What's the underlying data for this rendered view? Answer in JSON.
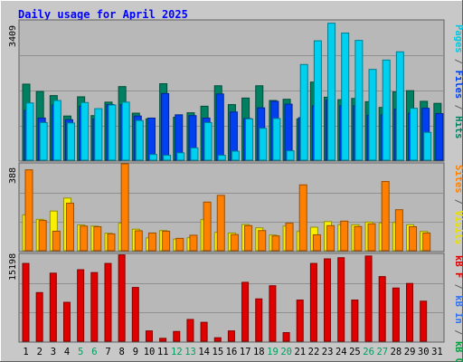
{
  "title": "Daily usage for April 2025",
  "right_labels": {
    "top": [
      {
        "text": "Pages",
        "color": "#00c8e0"
      },
      {
        "text": " / ",
        "color": "#606060"
      },
      {
        "text": "Files",
        "color": "#0040f0"
      },
      {
        "text": " / ",
        "color": "#606060"
      },
      {
        "text": "Hits",
        "color": "#008060"
      }
    ],
    "middle": [
      {
        "text": "Sites",
        "color": "#ff8000"
      },
      {
        "text": " / ",
        "color": "#606060"
      },
      {
        "text": "Visits",
        "color": "#e8e000"
      }
    ],
    "bottom": [
      {
        "text": "kB F",
        "color": "#e00000"
      },
      {
        "text": " / ",
        "color": "#606060"
      },
      {
        "text": "kB In",
        "color": "#3070f0"
      },
      {
        "text": " / ",
        "color": "#606060"
      },
      {
        "text": "kB Out",
        "color": "#00a040"
      }
    ]
  },
  "y_max_labels": {
    "top": "3409",
    "middle": "388",
    "bottom": "15198"
  },
  "colors": {
    "hits": "#008060",
    "files": "#0040f0",
    "pages": "#00d0f0",
    "visits": "#f8f000",
    "sites": "#ff8000",
    "kbytes": "#e00000",
    "weekday_label": "#000000",
    "weekend_label": "#00a060"
  },
  "chart_data": [
    {
      "type": "bar",
      "title": "Daily usage for April 2025",
      "panel": "top",
      "ylabel": "Pages / Files / Hits",
      "ylim": [
        0,
        3409
      ],
      "categories": [
        "1",
        "2",
        "3",
        "4",
        "5",
        "6",
        "7",
        "8",
        "9",
        "10",
        "11",
        "12",
        "13",
        "14",
        "15",
        "16",
        "17",
        "18",
        "19",
        "20",
        "21",
        "22",
        "23",
        "24",
        "25",
        "26",
        "27",
        "28",
        "29",
        "30",
        "31"
      ],
      "series": [
        {
          "name": "Hits",
          "values": [
            1860,
            1680,
            1580,
            1080,
            1550,
            1090,
            1420,
            1800,
            1150,
            1010,
            1870,
            1050,
            1160,
            1320,
            1820,
            1360,
            1520,
            1820,
            1460,
            1490,
            1010,
            1910,
            1540,
            1480,
            1510,
            1430,
            1290,
            1670,
            1700,
            1440,
            1390
          ]
        },
        {
          "name": "Files",
          "values": [
            1220,
            1030,
            1350,
            990,
            1320,
            1010,
            1360,
            1360,
            1080,
            1030,
            1630,
            1110,
            1090,
            1030,
            1620,
            1180,
            1020,
            1280,
            1440,
            1370,
            1040,
            1330,
            1470,
            1330,
            1330,
            1100,
            1110,
            1250,
            1150,
            1270,
            1140
          ]
        },
        {
          "name": "Pages",
          "values": [
            1400,
            920,
            1460,
            910,
            1410,
            1260,
            1350,
            1420,
            970,
            140,
            120,
            180,
            300,
            920,
            120,
            220,
            1010,
            780,
            1020,
            230,
            2340,
            2920,
            3350,
            3110,
            2930,
            2220,
            2450,
            2650,
            1270,
            680,
            0
          ]
        }
      ]
    },
    {
      "type": "bar",
      "panel": "middle",
      "ylabel": "Visits / Sites",
      "ylim": [
        0,
        388
      ],
      "categories": [
        "1",
        "2",
        "3",
        "4",
        "5",
        "6",
        "7",
        "8",
        "9",
        "10",
        "11",
        "12",
        "13",
        "14",
        "15",
        "16",
        "17",
        "18",
        "19",
        "20",
        "21",
        "22",
        "23",
        "24",
        "25",
        "26",
        "27",
        "28",
        "29",
        "30",
        "31"
      ],
      "series": [
        {
          "name": "Visits",
          "values": [
            160,
            140,
            177,
            235,
            115,
            110,
            78,
            123,
            96,
            57,
            90,
            52,
            58,
            139,
            82,
            79,
            117,
            102,
            70,
            110,
            86,
            105,
            130,
            116,
            116,
            128,
            124,
            126,
            116,
            86,
            0
          ]
        },
        {
          "name": "Sites",
          "values": [
            361,
            135,
            87,
            212,
            110,
            107,
            75,
            388,
            89,
            79,
            87,
            55,
            69,
            217,
            247,
            72,
            112,
            90,
            66,
            123,
            294,
            71,
            112,
            132,
            108,
            120,
            309,
            183,
            107,
            79,
            0
          ]
        }
      ]
    },
    {
      "type": "bar",
      "panel": "bottom",
      "ylabel": "kB F / kB In / kB Out",
      "ylim": [
        0,
        15198
      ],
      "categories": [
        "1",
        "2",
        "3",
        "4",
        "5",
        "6",
        "7",
        "8",
        "9",
        "10",
        "11",
        "12",
        "13",
        "14",
        "15",
        "16",
        "17",
        "18",
        "19",
        "20",
        "21",
        "22",
        "23",
        "24",
        "25",
        "26",
        "27",
        "28",
        "29",
        "30",
        "31"
      ],
      "series": [
        {
          "name": "kB F",
          "values": [
            13600,
            8500,
            11900,
            6800,
            12500,
            12000,
            13600,
            15100,
            9400,
            1800,
            500,
            1700,
            3800,
            3300,
            600,
            1800,
            10300,
            7400,
            9700,
            1500,
            7200,
            13600,
            14400,
            14600,
            7200,
            14900,
            11300,
            9300,
            10100,
            7000,
            0
          ]
        }
      ]
    }
  ],
  "x_labels": [
    {
      "text": "1",
      "weekend": false
    },
    {
      "text": "2",
      "weekend": false
    },
    {
      "text": "3",
      "weekend": false
    },
    {
      "text": "4",
      "weekend": false
    },
    {
      "text": "5",
      "weekend": true
    },
    {
      "text": "6",
      "weekend": true
    },
    {
      "text": "7",
      "weekend": false
    },
    {
      "text": "8",
      "weekend": false
    },
    {
      "text": "9",
      "weekend": false
    },
    {
      "text": "10",
      "weekend": false
    },
    {
      "text": "11",
      "weekend": false
    },
    {
      "text": "12",
      "weekend": true
    },
    {
      "text": "13",
      "weekend": true
    },
    {
      "text": "14",
      "weekend": false
    },
    {
      "text": "15",
      "weekend": false
    },
    {
      "text": "16",
      "weekend": false
    },
    {
      "text": "17",
      "weekend": false
    },
    {
      "text": "18",
      "weekend": false
    },
    {
      "text": "19",
      "weekend": true
    },
    {
      "text": "20",
      "weekend": true
    },
    {
      "text": "21",
      "weekend": false
    },
    {
      "text": "22",
      "weekend": false
    },
    {
      "text": "23",
      "weekend": false
    },
    {
      "text": "24",
      "weekend": false
    },
    {
      "text": "25",
      "weekend": false
    },
    {
      "text": "26",
      "weekend": true
    },
    {
      "text": "27",
      "weekend": true
    },
    {
      "text": "28",
      "weekend": false
    },
    {
      "text": "29",
      "weekend": false
    },
    {
      "text": "30",
      "weekend": false
    },
    {
      "text": "31",
      "weekend": false
    }
  ]
}
